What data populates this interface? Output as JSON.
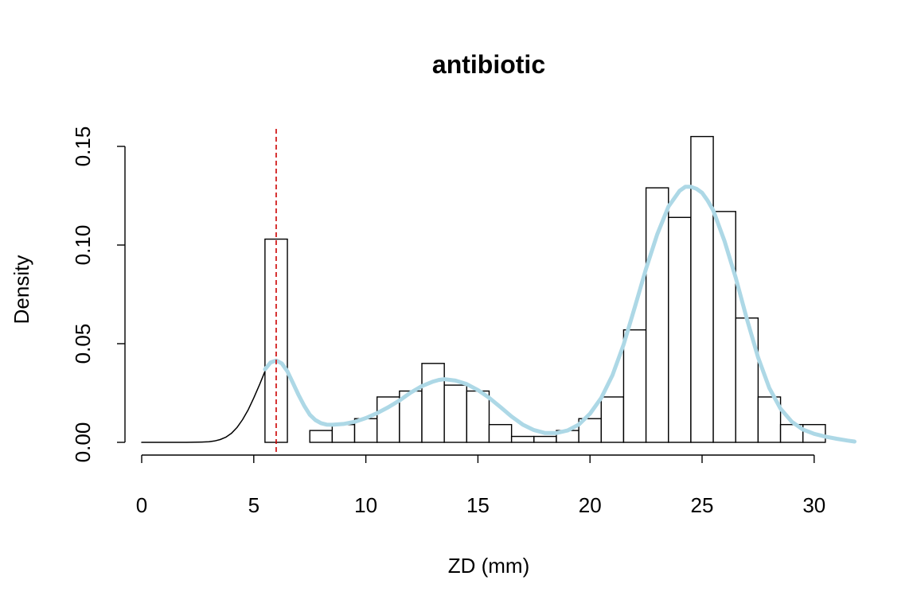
{
  "chart_data": {
    "type": "histogram",
    "title": "antibiotic",
    "xlabel": "ZD (mm)",
    "ylabel": "Density",
    "xlim": [
      0,
      32
    ],
    "ylim": [
      0,
      0.15
    ],
    "x_ticks": [
      0,
      5,
      10,
      15,
      20,
      25,
      30
    ],
    "y_ticks": [
      0.0,
      0.05,
      0.1,
      0.15
    ],
    "x_tick_labels": [
      "0",
      "5",
      "10",
      "15",
      "20",
      "25",
      "30"
    ],
    "y_tick_labels": [
      "0.00",
      "0.05",
      "0.10",
      "0.15"
    ],
    "grid": false,
    "histogram": {
      "bin_width": 1,
      "bins": [
        {
          "x0": 5.5,
          "x1": 6.5,
          "density": 0.103
        },
        {
          "x0": 6.5,
          "x1": 7.5,
          "density": 0.0
        },
        {
          "x0": 7.5,
          "x1": 8.5,
          "density": 0.006
        },
        {
          "x0": 8.5,
          "x1": 9.5,
          "density": 0.009
        },
        {
          "x0": 9.5,
          "x1": 10.5,
          "density": 0.012
        },
        {
          "x0": 10.5,
          "x1": 11.5,
          "density": 0.023
        },
        {
          "x0": 11.5,
          "x1": 12.5,
          "density": 0.026
        },
        {
          "x0": 12.5,
          "x1": 13.5,
          "density": 0.04
        },
        {
          "x0": 13.5,
          "x1": 14.5,
          "density": 0.029
        },
        {
          "x0": 14.5,
          "x1": 15.5,
          "density": 0.026
        },
        {
          "x0": 15.5,
          "x1": 16.5,
          "density": 0.009
        },
        {
          "x0": 16.5,
          "x1": 17.5,
          "density": 0.003
        },
        {
          "x0": 17.5,
          "x1": 18.5,
          "density": 0.003
        },
        {
          "x0": 18.5,
          "x1": 19.5,
          "density": 0.006
        },
        {
          "x0": 19.5,
          "x1": 20.5,
          "density": 0.012
        },
        {
          "x0": 20.5,
          "x1": 21.5,
          "density": 0.023
        },
        {
          "x0": 21.5,
          "x1": 22.5,
          "density": 0.057
        },
        {
          "x0": 22.5,
          "x1": 23.5,
          "density": 0.129
        },
        {
          "x0": 23.5,
          "x1": 24.5,
          "density": 0.114
        },
        {
          "x0": 24.5,
          "x1": 25.5,
          "density": 0.155
        },
        {
          "x0": 25.5,
          "x1": 26.5,
          "density": 0.117
        },
        {
          "x0": 26.5,
          "x1": 27.5,
          "density": 0.063
        },
        {
          "x0": 27.5,
          "x1": 28.5,
          "density": 0.023
        },
        {
          "x0": 28.5,
          "x1": 29.5,
          "density": 0.009
        },
        {
          "x0": 29.5,
          "x1": 30.5,
          "density": 0.009
        }
      ]
    },
    "series": [
      {
        "type": "line",
        "color": "#000000",
        "x": [
          0,
          1,
          2,
          2.5,
          3,
          3.25,
          3.5,
          3.75,
          4,
          4.25,
          4.5,
          4.75,
          5,
          5.25,
          5.5
        ],
        "y": [
          0,
          0,
          0,
          0.0001,
          0.0003,
          0.0007,
          0.0014,
          0.0026,
          0.0045,
          0.0075,
          0.0115,
          0.0165,
          0.0225,
          0.029,
          0.036
        ]
      },
      {
        "type": "line",
        "color": "#add8e6",
        "x": [
          5.5,
          5.75,
          6,
          6.25,
          6.5,
          6.75,
          7,
          7.25,
          7.5,
          7.75,
          8,
          8.25,
          8.5,
          9,
          9.5,
          10,
          10.5,
          11,
          11.5,
          12,
          12.5,
          13,
          13.25,
          13.5,
          14,
          14.5,
          15,
          15.5,
          16,
          16.5,
          17,
          17.5,
          18,
          18.5,
          19,
          19.5,
          20,
          20.5,
          21,
          21.5,
          22,
          22.5,
          23,
          23.5,
          24,
          24.25,
          24.5,
          24.75,
          25,
          25.25,
          25.5,
          26,
          26.5,
          27,
          27.5,
          28,
          28.5,
          29,
          29.5,
          30,
          30.5,
          31,
          31.5,
          31.8
        ],
        "y": [
          0.037,
          0.0405,
          0.0415,
          0.04,
          0.036,
          0.03,
          0.024,
          0.0185,
          0.014,
          0.0113,
          0.0097,
          0.009,
          0.0089,
          0.0093,
          0.0104,
          0.0123,
          0.0148,
          0.0178,
          0.0212,
          0.0252,
          0.0285,
          0.0308,
          0.0316,
          0.032,
          0.0313,
          0.0295,
          0.0265,
          0.0226,
          0.0179,
          0.0131,
          0.009,
          0.0062,
          0.0047,
          0.0047,
          0.006,
          0.009,
          0.0145,
          0.0225,
          0.034,
          0.0495,
          0.0685,
          0.088,
          0.1055,
          0.1195,
          0.1275,
          0.1295,
          0.1295,
          0.1285,
          0.1265,
          0.1225,
          0.1175,
          0.102,
          0.0835,
          0.0625,
          0.043,
          0.0275,
          0.017,
          0.0105,
          0.0065,
          0.0043,
          0.0029,
          0.0018,
          0.0009,
          0.0004
        ]
      }
    ],
    "vlines": [
      {
        "x": 6,
        "color": "#cc0000",
        "style": "dashed"
      }
    ]
  }
}
